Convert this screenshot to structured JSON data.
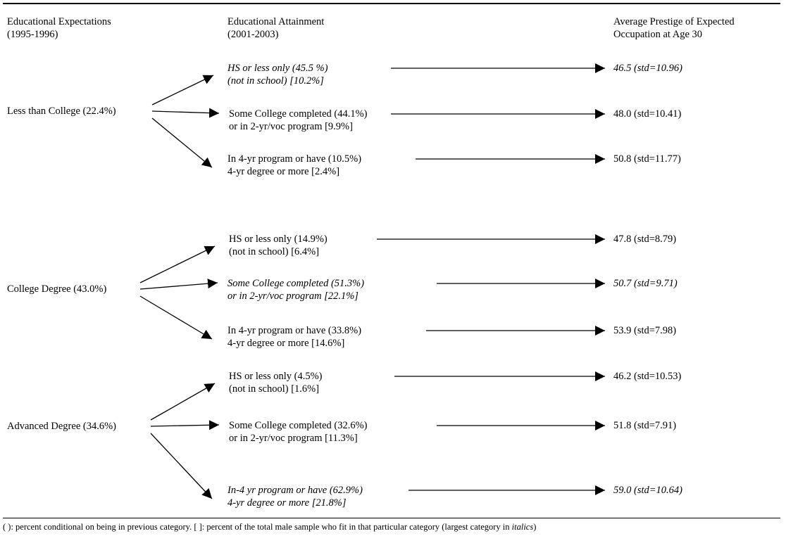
{
  "headers": {
    "expectations": {
      "line1": "Educational Expectations",
      "line2": "(1995-1996)"
    },
    "attainment": {
      "line1": "Educational Attainment",
      "line2": "(2001-2003)"
    },
    "prestige": {
      "line1": "Average Prestige of Expected",
      "line2": "Occupation at Age 30"
    }
  },
  "groups": [
    {
      "expectation": "Less than College (22.4%)",
      "outcomes": [
        {
          "line1": "HS or less only (45.5 %)",
          "line2": "(not in school) [10.2%]",
          "prestige": "46.5 (std=10.96)",
          "largest": true
        },
        {
          "line1": "Some College completed (44.1%)",
          "line2": "or in 2-yr/voc program [9.9%]",
          "prestige": "48.0 (std=10.41)",
          "largest": false
        },
        {
          "line1": "In 4-yr program or have (10.5%)",
          "line2": "4-yr degree or more [2.4%]",
          "prestige": "50.8 (std=11.77)",
          "largest": false
        }
      ]
    },
    {
      "expectation": "College Degree (43.0%)",
      "outcomes": [
        {
          "line1": "HS or less only (14.9%)",
          "line2": "(not in school)  [6.4%]",
          "prestige": "47.8 (std=8.79)",
          "largest": false
        },
        {
          "line1": "Some College completed (51.3%)",
          "line2": "or in 2-yr/voc program [22.1%]",
          "prestige": "50.7 (std=9.71)",
          "largest": true
        },
        {
          "line1": "In 4-yr program or have (33.8%)",
          "line2": "4-yr degree or more [14.6%]",
          "prestige": "53.9 (std=7.98)",
          "largest": false
        }
      ]
    },
    {
      "expectation": "Advanced Degree (34.6%)",
      "outcomes": [
        {
          "line1": "HS or less only  (4.5%)",
          "line2": "(not in school)  [1.6%]",
          "prestige": "46.2 (std=10.53)",
          "largest": false
        },
        {
          "line1": "Some College completed (32.6%)",
          "line2": "or in 2-yr/voc program [11.3%]",
          "prestige": "51.8 (std=7.91)",
          "largest": false
        },
        {
          "line1": "In-4 yr program or have (62.9%)",
          "line2": "4-yr degree or more [21.8%]",
          "prestige": "59.0 (std=10.64)",
          "largest": true
        }
      ]
    }
  ],
  "footnote": {
    "prefix": "( ): percent conditional on being in previous category. [ ]: percent of the total male sample who fit in that particular category (largest category in ",
    "emphasis": "italics",
    "suffix": ")"
  }
}
